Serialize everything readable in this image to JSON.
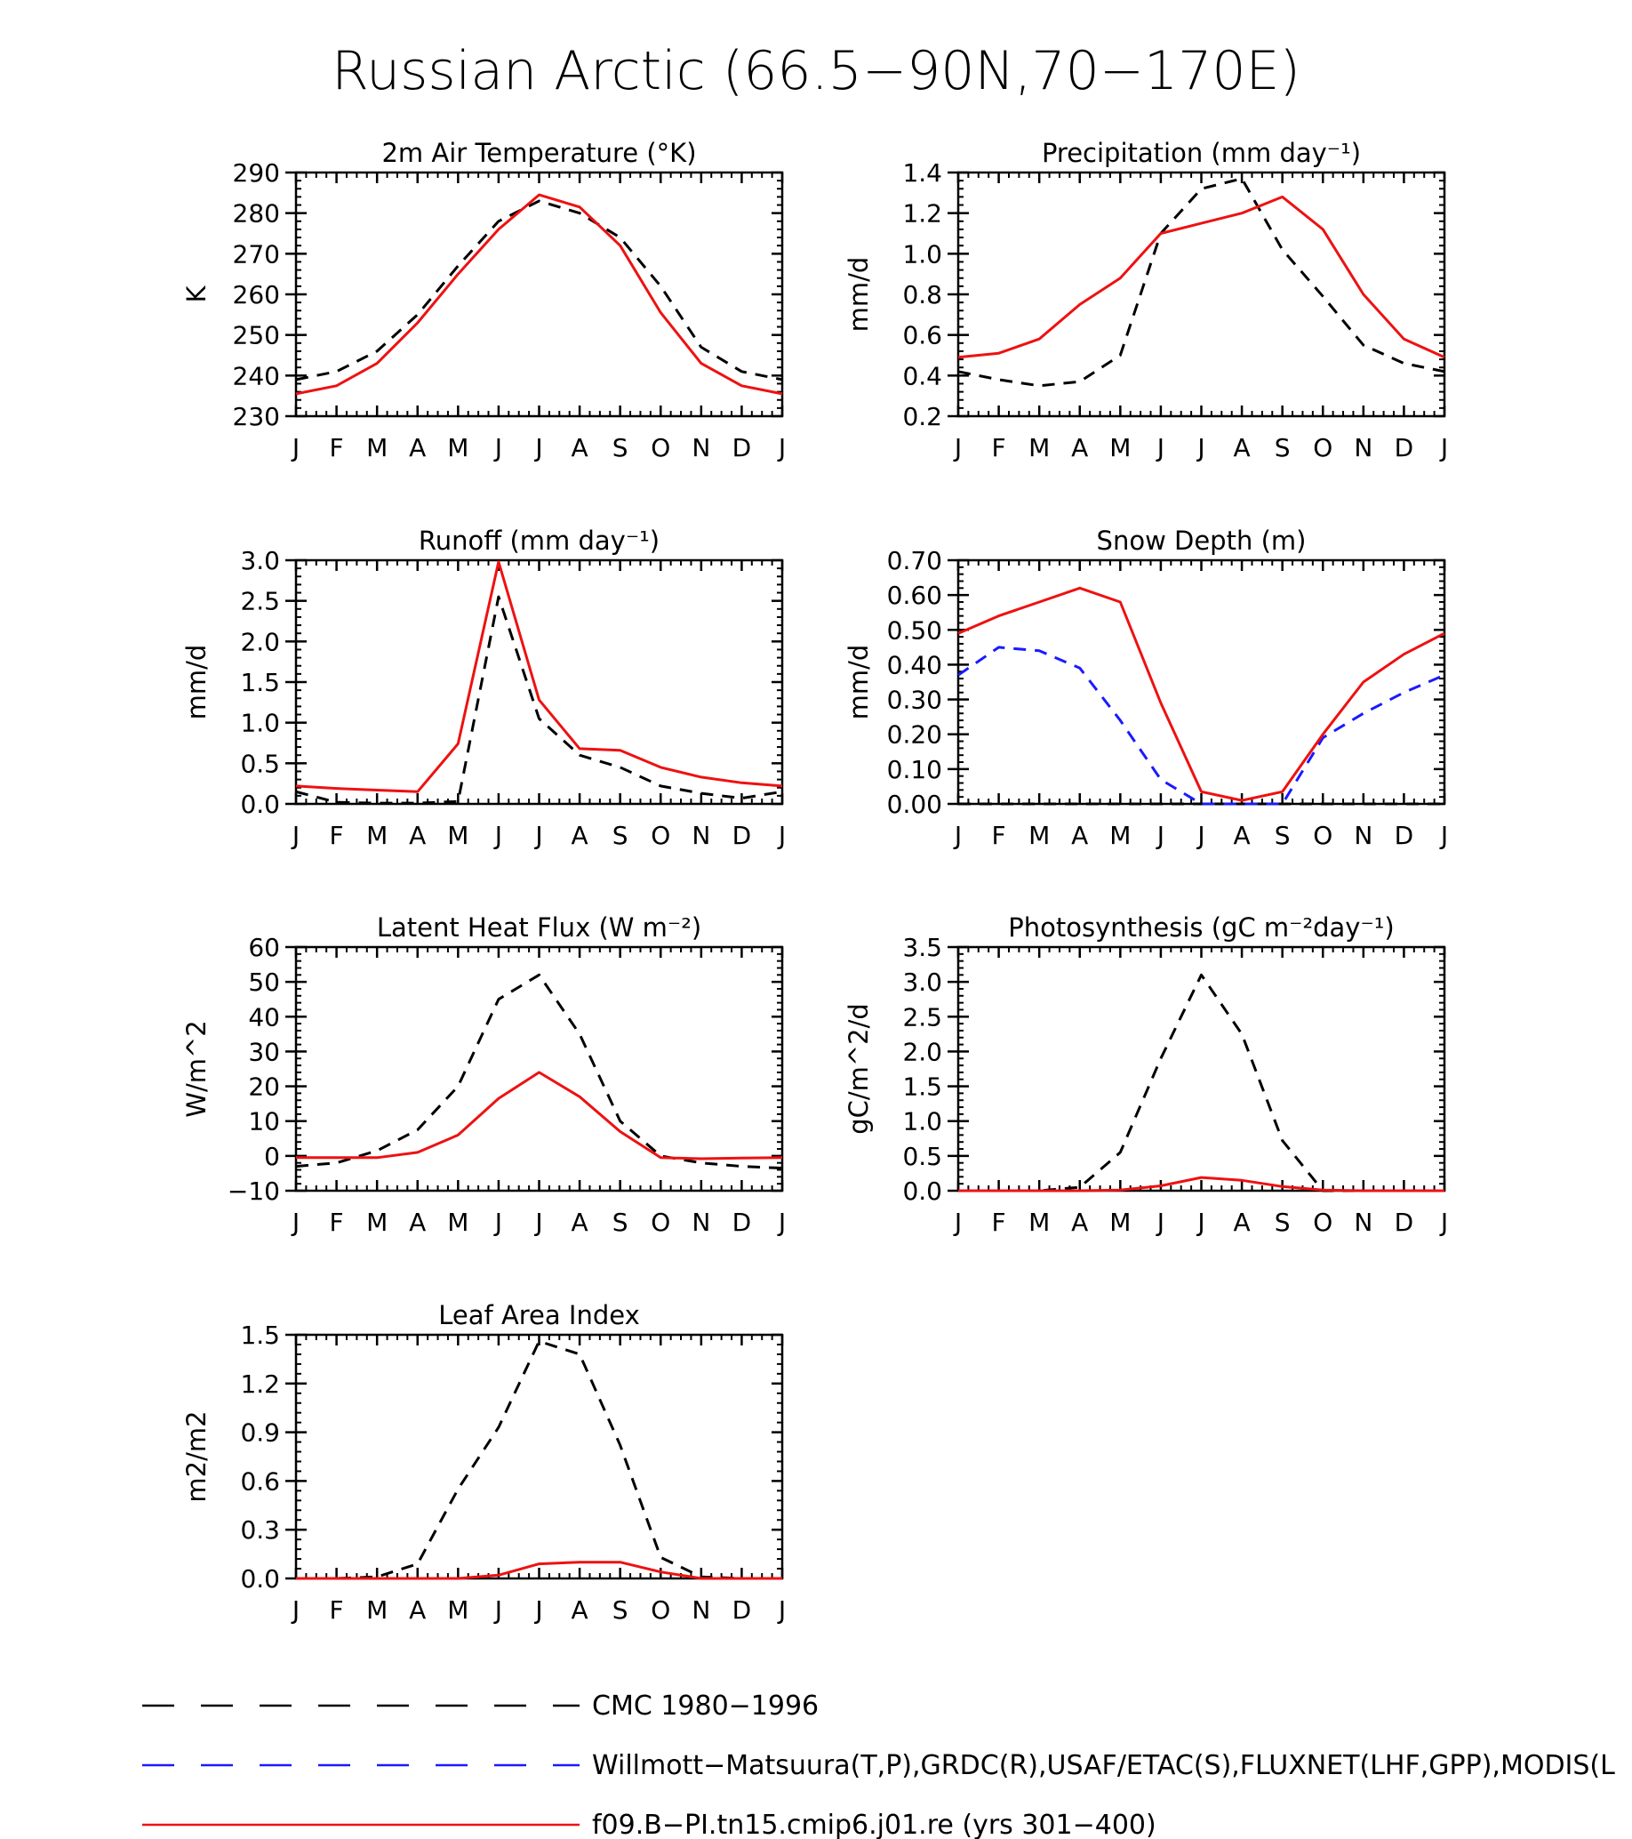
{
  "page_title": "Russian Arctic (66.5−90N,70−170E)",
  "months": [
    "J",
    "F",
    "M",
    "A",
    "M",
    "J",
    "J",
    "A",
    "S",
    "O",
    "N",
    "D",
    "J"
  ],
  "colors": {
    "cmc": "#000000",
    "obs": "#1a1aff",
    "model": "#ee1111"
  },
  "legend": [
    {
      "label": "CMC 1980−1996",
      "style": "dashed",
      "color": "#000000"
    },
    {
      "label": "Willmott−Matsuura(T,P),GRDC(R),USAF/ETAC(S),FLUXNET(LHF,GPP),MODIS(L",
      "style": "dashed",
      "color": "#1a1aff"
    },
    {
      "label": "f09.B−PI.tn15.cmip6.j01.re (yrs 301−400)",
      "style": "solid",
      "color": "#ee1111"
    }
  ],
  "chart_data": [
    {
      "type": "line",
      "title": "2m Air Temperature (°K)",
      "ylabel": "K",
      "ylim": [
        230,
        290
      ],
      "yticks": [
        "230",
        "240",
        "250",
        "260",
        "270",
        "280",
        "290"
      ],
      "series": [
        {
          "name": "CMC 1980−1996",
          "style": "dashed",
          "color": "#000000",
          "values": [
            239,
            241,
            246,
            255,
            267,
            278,
            283,
            280,
            274,
            262,
            247,
            241,
            239
          ]
        },
        {
          "name": "f09.B−PI.tn15.cmip6.j01.re (yrs 301−400)",
          "style": "solid",
          "color": "#ee1111",
          "values": [
            235.5,
            237.5,
            243,
            253,
            265,
            276,
            284.5,
            281.5,
            272,
            255.5,
            243,
            237.5,
            235.5
          ]
        }
      ]
    },
    {
      "type": "line",
      "title": "Precipitation (mm day⁻¹)",
      "ylabel": "mm/d",
      "ylim": [
        0.2,
        1.4
      ],
      "yticks": [
        "0.2",
        "0.4",
        "0.6",
        "0.8",
        "1.0",
        "1.2",
        "1.4"
      ],
      "series": [
        {
          "name": "CMC 1980−1996",
          "style": "dashed",
          "color": "#000000",
          "values": [
            0.42,
            0.38,
            0.35,
            0.37,
            0.5,
            1.1,
            1.32,
            1.37,
            1.02,
            0.79,
            0.55,
            0.46,
            0.42
          ]
        },
        {
          "name": "f09.B−PI.tn15.cmip6.j01.re (yrs 301−400)",
          "style": "solid",
          "color": "#ee1111",
          "values": [
            0.49,
            0.51,
            0.58,
            0.75,
            0.88,
            1.1,
            1.15,
            1.2,
            1.28,
            1.12,
            0.8,
            0.58,
            0.49
          ]
        }
      ]
    },
    {
      "type": "line",
      "title": "Runoff (mm day⁻¹)",
      "ylabel": "mm/d",
      "ylim": [
        0,
        3
      ],
      "yticks": [
        "0.0",
        "0.5",
        "1.0",
        "1.5",
        "2.0",
        "2.5",
        "3.0"
      ],
      "series": [
        {
          "name": "CMC 1980−1996",
          "style": "dashed",
          "color": "#000000",
          "values": [
            0.15,
            0.02,
            0.01,
            0.01,
            0.03,
            2.55,
            1.05,
            0.6,
            0.45,
            0.22,
            0.13,
            0.07,
            0.15
          ]
        },
        {
          "name": "f09.B−PI.tn15.cmip6.j01.re (yrs 301−400)",
          "style": "solid",
          "color": "#ee1111",
          "values": [
            0.22,
            0.19,
            0.17,
            0.15,
            0.74,
            2.98,
            1.28,
            0.68,
            0.66,
            0.45,
            0.33,
            0.26,
            0.22
          ]
        }
      ]
    },
    {
      "type": "line",
      "title": "Snow Depth (m)",
      "ylabel": "mm/d",
      "ylim": [
        0,
        0.7
      ],
      "yticks": [
        "0.00",
        "0.10",
        "0.20",
        "0.30",
        "0.40",
        "0.50",
        "0.60",
        "0.70"
      ],
      "series": [
        {
          "name": "CMC 1980−1996",
          "style": "dashed",
          "color": "#000000",
          "values": [
            0,
            0,
            0,
            0,
            0,
            0,
            0,
            0,
            0,
            0,
            0,
            0,
            0
          ]
        },
        {
          "name": "Willmott−Matsuura(T,P),GRDC(R),USAF/ETAC(S),FLUXNET(LHF,GPP),MODIS(L",
          "style": "dashed",
          "color": "#1a1aff",
          "values": [
            0.37,
            0.45,
            0.44,
            0.39,
            0.24,
            0.07,
            0.0,
            0.0,
            0.0,
            0.19,
            0.26,
            0.32,
            0.37
          ]
        },
        {
          "name": "f09.B−PI.tn15.cmip6.j01.re (yrs 301−400)",
          "style": "solid",
          "color": "#ee1111",
          "values": [
            0.49,
            0.54,
            0.58,
            0.62,
            0.58,
            0.29,
            0.035,
            0.01,
            0.035,
            0.2,
            0.35,
            0.43,
            0.49
          ]
        }
      ]
    },
    {
      "type": "line",
      "title": "Latent Heat Flux (W m⁻²)",
      "ylabel": "W/m^2",
      "ylim": [
        -10,
        60
      ],
      "yticks": [
        "−10",
        "0",
        "10",
        "20",
        "30",
        "40",
        "50",
        "60"
      ],
      "series": [
        {
          "name": "CMC 1980−1996",
          "style": "dashed",
          "color": "#000000",
          "values": [
            -3,
            -2,
            1.5,
            7.5,
            20,
            45,
            52,
            35,
            10,
            0,
            -2,
            -3,
            -3.5
          ]
        },
        {
          "name": "f09.B−PI.tn15.cmip6.j01.re (yrs 301−400)",
          "style": "solid",
          "color": "#ee1111",
          "values": [
            -0.5,
            -0.5,
            -0.5,
            1,
            6,
            16.5,
            24,
            17,
            7,
            -0.5,
            -0.8,
            -0.6,
            -0.5
          ]
        }
      ]
    },
    {
      "type": "line",
      "title": "Photosynthesis (gC m⁻²day⁻¹)",
      "ylabel": "gC/m^2/d",
      "ylim": [
        0,
        3.5
      ],
      "yticks": [
        "0.0",
        "0.5",
        "1.0",
        "1.5",
        "2.0",
        "2.5",
        "3.0",
        "3.5"
      ],
      "series": [
        {
          "name": "CMC 1980−1996",
          "style": "dashed",
          "color": "#000000",
          "values": [
            0,
            0,
            0,
            0.05,
            0.55,
            1.9,
            3.1,
            2.25,
            0.72,
            0.0,
            0,
            0,
            0
          ]
        },
        {
          "name": "f09.B−PI.tn15.cmip6.j01.re (yrs 301−400)",
          "style": "solid",
          "color": "#ee1111",
          "values": [
            0,
            0,
            0,
            0,
            0.01,
            0.07,
            0.19,
            0.15,
            0.06,
            0.01,
            0,
            0,
            0
          ]
        }
      ]
    },
    {
      "type": "line",
      "title": "Leaf Area Index",
      "ylabel": "m2/m2",
      "ylim": [
        0,
        1.5
      ],
      "yticks": [
        "0.0",
        "0.3",
        "0.6",
        "0.9",
        "1.2",
        "1.5"
      ],
      "series": [
        {
          "name": "CMC 1980−1996",
          "style": "dashed",
          "color": "#000000",
          "values": [
            0,
            0,
            0.01,
            0.09,
            0.55,
            0.93,
            1.46,
            1.38,
            0.82,
            0.13,
            0.01,
            0,
            0
          ]
        },
        {
          "name": "f09.B−PI.tn15.cmip6.j01.re (yrs 301−400)",
          "style": "solid",
          "color": "#ee1111",
          "values": [
            0,
            0,
            0,
            0,
            0,
            0.02,
            0.09,
            0.1,
            0.1,
            0.04,
            0,
            0,
            0
          ]
        }
      ]
    }
  ]
}
